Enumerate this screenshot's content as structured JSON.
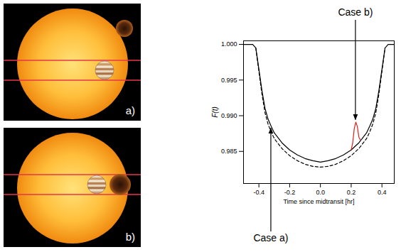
{
  "chart_data": {
    "type": "line",
    "x_label": "Time since midtransit [hr]",
    "y_label": "F(t)",
    "xlim": [
      -0.5,
      0.48
    ],
    "xticks": [
      -0.4,
      -0.2,
      {
        "value": 0,
        "label": "0.0"
      },
      0.2,
      0.4
    ],
    "ylim": [
      0.9805,
      1.0005
    ],
    "yticks": [
      0.985,
      {
        "value": 0.99,
        "label": "0.990"
      },
      0.995,
      {
        "value": 1,
        "label": "1.000"
      }
    ],
    "series": [
      {
        "color": "#000000",
        "line_style": "solid",
        "x": [
          -0.5,
          -0.44,
          -0.42,
          -0.4,
          -0.38,
          -0.36,
          -0.34,
          -0.32,
          -0.3,
          -0.25,
          -0.2,
          -0.15,
          -0.1,
          -0.05,
          0,
          0.05,
          0.1,
          0.15,
          0.2,
          0.25,
          0.3,
          0.32,
          0.34,
          0.36,
          0.38,
          0.4,
          0.42,
          0.44,
          0.48
        ],
        "values": [
          1.0,
          1.0,
          0.9995,
          0.9965,
          0.9935,
          0.991,
          0.9895,
          0.9885,
          0.9876,
          0.9862,
          0.9852,
          0.9845,
          0.984,
          0.9837,
          0.9835,
          0.9837,
          0.984,
          0.9845,
          0.9852,
          0.9862,
          0.9876,
          0.9885,
          0.9895,
          0.991,
          0.9935,
          0.9965,
          0.9995,
          1.0,
          1.0
        ]
      },
      {
        "color": "#000000",
        "line_style": "dashed",
        "x": [
          -0.42,
          -0.4,
          -0.38,
          -0.36,
          -0.34,
          -0.32,
          -0.3,
          -0.25,
          -0.2,
          -0.15,
          -0.1,
          -0.05,
          0,
          0.05,
          0.1,
          0.15,
          0.2,
          0.25,
          0.3,
          0.32,
          0.34,
          0.36,
          0.38,
          0.4,
          0.42
        ],
        "values": [
          0.9995,
          0.9962,
          0.993,
          0.9904,
          0.9888,
          0.9877,
          0.9868,
          0.9854,
          0.9844,
          0.9837,
          0.9832,
          0.9829,
          0.9828,
          0.9829,
          0.9832,
          0.9837,
          0.9844,
          0.9854,
          0.9868,
          0.9877,
          0.9888,
          0.9904,
          0.993,
          0.9962,
          0.9995
        ]
      },
      {
        "color": "#e0201b",
        "line_style": "solid",
        "x": [
          0.2,
          0.21,
          0.22,
          0.23,
          0.24,
          0.25,
          0.26
        ],
        "values": [
          0.9852,
          0.9862,
          0.9882,
          0.9891,
          0.9885,
          0.987,
          0.9866
        ]
      }
    ],
    "annotations": [
      {
        "text": "Case a)",
        "x": -0.32,
        "y": 0.9885
      },
      {
        "text": "Case b)",
        "x": 0.23,
        "y": 0.9891
      }
    ]
  },
  "panels": [
    {
      "label": "a)"
    },
    {
      "label": "b)"
    }
  ]
}
